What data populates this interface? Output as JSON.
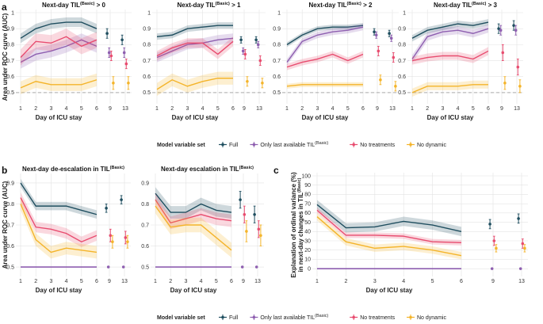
{
  "colors": {
    "full": "#1f4e5f",
    "only_last": "#8e5fb0",
    "no_treat": "#e84c6f",
    "no_dyn": "#f4b42a",
    "ref": "#aaaaaa"
  },
  "legend": {
    "title": "Model variable set",
    "items": [
      {
        "key": "full",
        "label": "Full"
      },
      {
        "key": "only_last",
        "label": "Only last available TIL",
        "sup": "(Basic)"
      },
      {
        "key": "no_treat",
        "label": "No treatments"
      },
      {
        "key": "no_dyn",
        "label": "No dynamic"
      }
    ]
  },
  "panel_labels": {
    "a": "a",
    "b": "b",
    "c": "c"
  },
  "axis_text": {
    "auc_ylabel": "Area under ROC curve (AUC)",
    "day_xlabel": "Day of ICU stay",
    "var_ylabel_1": "Explanation of ordinal variance (%)",
    "var_ylabel_2": "in next-day changes in TIL",
    "var_ylabel_sup": "(Basic)"
  },
  "chart_data": [
    {
      "id": "a1",
      "type": "line",
      "title": "Next-day TIL",
      "title_sup": "(Basic)",
      "title_tail": " > 0",
      "x": [
        1,
        2,
        3,
        4,
        5,
        6
      ],
      "x_extra": [
        9,
        13
      ],
      "ylim": [
        0.45,
        1.0
      ],
      "yticks": [
        0.5,
        0.6,
        0.7,
        0.8,
        0.9,
        1.0
      ],
      "reference_line": 0.5,
      "series": [
        {
          "key": "full",
          "values": [
            0.84,
            0.9,
            0.93,
            0.94,
            0.94,
            0.9
          ],
          "band": 0.03,
          "extra": [
            0.87,
            0.83
          ],
          "extra_err": 0.03
        },
        {
          "key": "only_last",
          "values": [
            0.69,
            0.74,
            0.76,
            0.79,
            0.83,
            0.79
          ],
          "band": 0.04,
          "extra": [
            0.75,
            0.75
          ],
          "extra_err": 0.03
        },
        {
          "key": "no_treat",
          "values": [
            0.72,
            0.82,
            0.81,
            0.85,
            0.79,
            0.83
          ],
          "band": 0.05,
          "extra": [
            0.73,
            0.68
          ],
          "extra_err": 0.03
        },
        {
          "key": "no_dyn",
          "values": [
            0.53,
            0.57,
            0.55,
            0.55,
            0.55,
            0.58
          ],
          "band": 0.04,
          "extra": [
            0.56,
            0.56
          ],
          "extra_err": 0.04
        }
      ]
    },
    {
      "id": "a2",
      "type": "line",
      "title": "Next-day TIL",
      "title_sup": "(Basic)",
      "title_tail": " > 1",
      "x": [
        1,
        2,
        3,
        4,
        5,
        6
      ],
      "x_extra": [
        9,
        13
      ],
      "ylim": [
        0.45,
        1.0
      ],
      "yticks": [
        0.5,
        0.6,
        0.7,
        0.8,
        0.9,
        1.0
      ],
      "reference_line": 0.5,
      "series": [
        {
          "key": "full",
          "values": [
            0.85,
            0.86,
            0.9,
            0.91,
            0.92,
            0.92
          ],
          "band": 0.02,
          "extra": [
            0.83,
            0.83
          ],
          "extra_err": 0.02
        },
        {
          "key": "only_last",
          "values": [
            0.72,
            0.76,
            0.8,
            0.81,
            0.83,
            0.84
          ],
          "band": 0.03,
          "extra": [
            0.76,
            0.8
          ],
          "extra_err": 0.02
        },
        {
          "key": "no_treat",
          "values": [
            0.73,
            0.78,
            0.81,
            0.81,
            0.74,
            0.82
          ],
          "band": 0.03,
          "extra": [
            0.74,
            0.7
          ],
          "extra_err": 0.03
        },
        {
          "key": "no_dyn",
          "values": [
            0.52,
            0.58,
            0.54,
            0.57,
            0.59,
            0.59
          ],
          "band": 0.04,
          "extra": [
            0.57,
            0.56
          ],
          "extra_err": 0.03
        }
      ]
    },
    {
      "id": "a3",
      "type": "line",
      "title": "Next-day TIL",
      "title_sup": "(Basic)",
      "title_tail": " > 2",
      "x": [
        1,
        2,
        3,
        4,
        5,
        6
      ],
      "x_extra": [
        9,
        13
      ],
      "ylim": [
        0.45,
        1.0
      ],
      "yticks": [
        0.5,
        0.6,
        0.7,
        0.8,
        0.9,
        1.0
      ],
      "reference_line": 0.5,
      "series": [
        {
          "key": "full",
          "values": [
            0.8,
            0.86,
            0.9,
            0.91,
            0.91,
            0.92
          ],
          "band": 0.015,
          "extra": [
            0.88,
            0.87
          ],
          "extra_err": 0.02
        },
        {
          "key": "only_last",
          "values": [
            0.69,
            0.82,
            0.86,
            0.88,
            0.89,
            0.91
          ],
          "band": 0.02,
          "extra": [
            0.86,
            0.84
          ],
          "extra_err": 0.02
        },
        {
          "key": "no_treat",
          "values": [
            0.66,
            0.69,
            0.71,
            0.74,
            0.7,
            0.74
          ],
          "band": 0.02,
          "extra": [
            0.76,
            0.72
          ],
          "extra_err": 0.03
        },
        {
          "key": "no_dyn",
          "values": [
            0.54,
            0.55,
            0.55,
            0.55,
            0.55,
            0.55
          ],
          "band": 0.015,
          "extra": [
            0.58,
            0.54
          ],
          "extra_err": 0.03
        }
      ]
    },
    {
      "id": "a4",
      "type": "line",
      "title": "Next-day TIL",
      "title_sup": "(Basic)",
      "title_tail": " > 3",
      "x": [
        1,
        2,
        3,
        4,
        5,
        6
      ],
      "x_extra": [
        9,
        13
      ],
      "ylim": [
        0.45,
        1.0
      ],
      "yticks": [
        0.5,
        0.6,
        0.7,
        0.8,
        0.9,
        1.0
      ],
      "reference_line": 0.5,
      "series": [
        {
          "key": "full",
          "values": [
            0.84,
            0.89,
            0.91,
            0.93,
            0.92,
            0.94
          ],
          "band": 0.02,
          "extra": [
            0.9,
            0.92
          ],
          "extra_err": 0.03
        },
        {
          "key": "only_last",
          "values": [
            0.71,
            0.85,
            0.88,
            0.89,
            0.87,
            0.9
          ],
          "band": 0.025,
          "extra": [
            0.89,
            0.89
          ],
          "extra_err": 0.03
        },
        {
          "key": "no_treat",
          "values": [
            0.7,
            0.72,
            0.73,
            0.73,
            0.71,
            0.76
          ],
          "band": 0.025,
          "extra": [
            0.75,
            0.66
          ],
          "extra_err": 0.05
        },
        {
          "key": "no_dyn",
          "values": [
            0.5,
            0.54,
            0.54,
            0.54,
            0.55,
            0.55
          ],
          "band": 0.025,
          "extra": [
            0.56,
            0.54
          ],
          "extra_err": 0.04
        }
      ]
    },
    {
      "id": "b1",
      "type": "line",
      "title": "Next-day de-escalation in TIL",
      "title_sup": "(Basic)",
      "title_tail": "",
      "x": [
        1,
        2,
        3,
        4,
        5,
        6
      ],
      "x_extra": [
        9,
        13
      ],
      "ylim": [
        0.47,
        0.93
      ],
      "yticks": [
        0.5,
        0.6,
        0.7,
        0.8,
        0.9
      ],
      "reference_line": null,
      "series": [
        {
          "key": "full",
          "values": [
            0.9,
            0.79,
            0.79,
            0.79,
            0.77,
            0.75
          ],
          "band": 0.02,
          "extra": [
            0.78,
            0.82
          ],
          "extra_err": 0.02
        },
        {
          "key": "only_last",
          "values": [
            0.5,
            0.5,
            0.5,
            0.5,
            0.5,
            0.5
          ],
          "band": 0,
          "extra": [
            0.5,
            0.5
          ],
          "extra_err": 0
        },
        {
          "key": "no_treat",
          "values": [
            0.83,
            0.69,
            0.68,
            0.66,
            0.62,
            0.65
          ],
          "band": 0.025,
          "extra": [
            0.65,
            0.64
          ],
          "extra_err": 0.03
        },
        {
          "key": "no_dyn",
          "values": [
            0.8,
            0.63,
            0.57,
            0.59,
            0.58,
            0.57
          ],
          "band": 0.03,
          "extra": [
            0.62,
            0.62
          ],
          "extra_err": 0.03
        }
      ]
    },
    {
      "id": "b2",
      "type": "line",
      "title": "Next-day escalation in TIL",
      "title_sup": "(Basic)",
      "title_tail": "",
      "x": [
        1,
        2,
        3,
        4,
        5,
        6
      ],
      "x_extra": [
        9,
        13
      ],
      "ylim": [
        0.47,
        0.93
      ],
      "yticks": [
        0.5,
        0.6,
        0.7,
        0.8,
        0.9
      ],
      "reference_line": null,
      "series": [
        {
          "key": "full",
          "values": [
            0.85,
            0.76,
            0.76,
            0.8,
            0.77,
            0.76
          ],
          "band": 0.03,
          "extra": [
            0.82,
            0.75
          ],
          "extra_err": 0.04
        },
        {
          "key": "only_last",
          "values": [
            0.5,
            0.5,
            0.5,
            0.5,
            0.5,
            0.5
          ],
          "band": 0,
          "extra": [
            0.5,
            0.5
          ],
          "extra_err": 0
        },
        {
          "key": "no_treat",
          "values": [
            0.82,
            0.71,
            0.73,
            0.75,
            0.73,
            0.72
          ],
          "band": 0.03,
          "extra": [
            0.75,
            0.68
          ],
          "extra_err": 0.04
        },
        {
          "key": "no_dyn",
          "values": [
            0.79,
            0.69,
            0.7,
            0.7,
            0.64,
            0.58
          ],
          "band": 0.035,
          "extra": [
            0.67,
            0.65
          ],
          "extra_err": 0.05
        }
      ]
    },
    {
      "id": "c1",
      "type": "line",
      "title": "",
      "title_sup": "",
      "title_tail": "",
      "x": [
        1,
        2,
        3,
        4,
        5,
        6
      ],
      "x_extra": [
        9,
        13
      ],
      "ylim": [
        -5,
        100
      ],
      "yticks": [
        0,
        10,
        20,
        30,
        40,
        50,
        60,
        70,
        80,
        90,
        100
      ],
      "reference_line": null,
      "series": [
        {
          "key": "full",
          "values": [
            69,
            44,
            45,
            51,
            47,
            40
          ],
          "band": 5,
          "extra": [
            48,
            54
          ],
          "extra_err": 5
        },
        {
          "key": "only_last",
          "values": [
            0,
            0,
            0,
            0,
            0,
            0
          ],
          "band": 0,
          "extra": [
            0,
            0
          ],
          "extra_err": 0
        },
        {
          "key": "no_treat",
          "values": [
            63,
            36,
            36,
            35,
            29,
            28
          ],
          "band": 3,
          "extra": [
            30,
            27
          ],
          "extra_err": 5
        },
        {
          "key": "no_dyn",
          "values": [
            56,
            29,
            22,
            24,
            20,
            14
          ],
          "band": 4,
          "extra": [
            22,
            22
          ],
          "extra_err": 4
        }
      ]
    }
  ]
}
